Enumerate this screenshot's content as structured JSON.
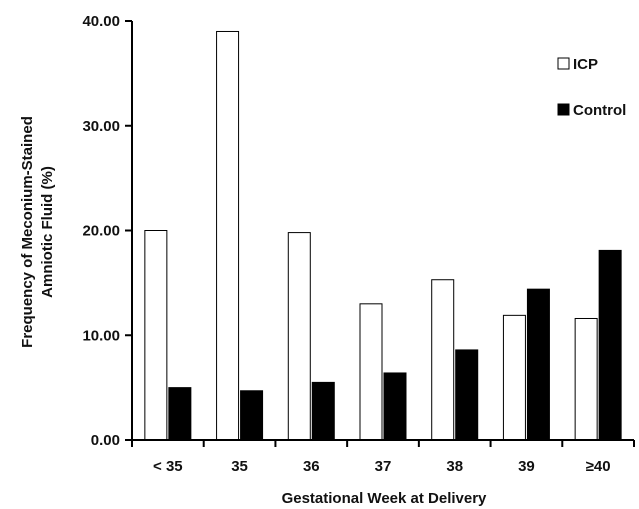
{
  "chart_data": {
    "type": "bar",
    "title": "",
    "xlabel": "Gestational Week at Delivery",
    "ylabel_line1": "Frequency of Meconium-Stained",
    "ylabel_line2": "Amniotic Fluid (%)",
    "ylim": [
      0,
      40
    ],
    "yticks": [
      "0.00",
      "10.00",
      "20.00",
      "30.00",
      "40.00"
    ],
    "ytick_values": [
      0,
      10,
      20,
      30,
      40
    ],
    "categories": [
      "< 35",
      "35",
      "36",
      "37",
      "38",
      "39",
      "≥40"
    ],
    "series": [
      {
        "name": "ICP",
        "color": "#ffffff",
        "values": [
          20.0,
          39.0,
          19.8,
          13.0,
          15.3,
          11.9,
          11.6
        ]
      },
      {
        "name": "Control",
        "color": "#000000",
        "values": [
          5.0,
          4.7,
          5.5,
          6.4,
          8.6,
          14.4,
          18.1
        ]
      }
    ],
    "legend": "top-right",
    "grid": false
  }
}
